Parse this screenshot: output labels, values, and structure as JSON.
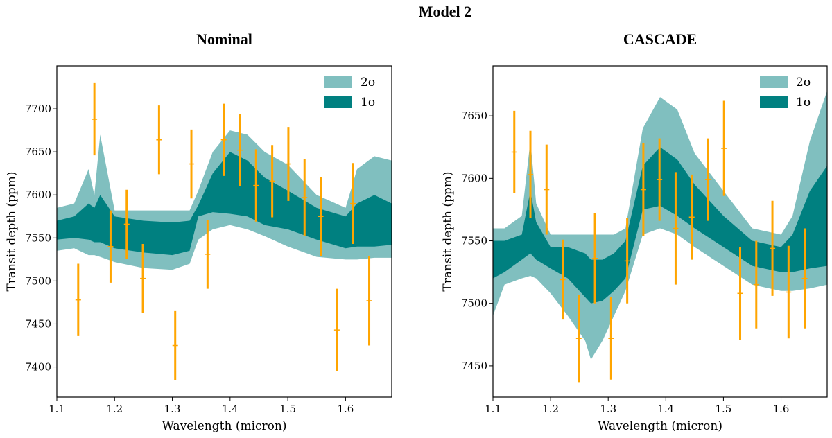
{
  "suptitle": "Model 2",
  "colors": {
    "band_2sigma": "#80bfbf",
    "band_1sigma": "#008080",
    "points": "#ffa500",
    "axes": "#000000"
  },
  "chart_data": [
    {
      "type": "line",
      "title": "Nominal",
      "xlabel": "Wavelength (micron)",
      "ylabel": "Transit depth (ppm)",
      "xlim": [
        1.1,
        1.68
      ],
      "ylim": [
        7365,
        7750
      ],
      "xticks": [
        1.1,
        1.2,
        1.3,
        1.4,
        1.5,
        1.6
      ],
      "xtick_labels": [
        "1.1",
        "1.2",
        "1.3",
        "1.4",
        "1.5",
        "1.6"
      ],
      "yticks": [
        7400,
        7450,
        7500,
        7550,
        7600,
        7650,
        7700
      ],
      "ytick_labels": [
        "7400",
        "7450",
        "7500",
        "7550",
        "7600",
        "7650",
        "7700"
      ],
      "legend": {
        "position": "top-right",
        "entries": [
          "2σ",
          "1σ"
        ]
      },
      "bands": {
        "x": [
          1.1,
          1.13,
          1.155,
          1.165,
          1.175,
          1.2,
          1.25,
          1.3,
          1.33,
          1.345,
          1.37,
          1.4,
          1.43,
          1.46,
          1.5,
          1.55,
          1.6,
          1.62,
          1.65,
          1.68
        ],
        "upper_2s": [
          7585,
          7590,
          7630,
          7600,
          7670,
          7582,
          7582,
          7582,
          7582,
          7605,
          7650,
          7675,
          7670,
          7650,
          7635,
          7600,
          7585,
          7630,
          7645,
          7640
        ],
        "upper_1s": [
          7570,
          7575,
          7590,
          7585,
          7600,
          7575,
          7570,
          7568,
          7570,
          7588,
          7625,
          7650,
          7640,
          7620,
          7605,
          7585,
          7575,
          7590,
          7600,
          7590
        ],
        "lower_1s": [
          7548,
          7550,
          7548,
          7545,
          7545,
          7538,
          7533,
          7530,
          7535,
          7575,
          7580,
          7578,
          7575,
          7565,
          7560,
          7548,
          7538,
          7540,
          7540,
          7542
        ],
        "lower_2s": [
          7535,
          7538,
          7530,
          7530,
          7528,
          7522,
          7515,
          7513,
          7520,
          7548,
          7560,
          7565,
          7560,
          7552,
          7540,
          7528,
          7525,
          7525,
          7527,
          7527
        ]
      },
      "points": {
        "x": [
          1.137,
          1.165,
          1.193,
          1.221,
          1.249,
          1.277,
          1.305,
          1.333,
          1.361,
          1.389,
          1.417,
          1.445,
          1.473,
          1.501,
          1.529,
          1.557,
          1.585,
          1.613,
          1.641
        ],
        "y": [
          7478,
          7688,
          7540,
          7566,
          7503,
          7664,
          7425,
          7636,
          7531,
          7664,
          7652,
          7611,
          7616,
          7636,
          7597,
          7575,
          7443,
          7590,
          7477
        ],
        "err": [
          42,
          42,
          42,
          40,
          40,
          40,
          40,
          40,
          40,
          42,
          42,
          42,
          42,
          43,
          45,
          46,
          48,
          47,
          52
        ]
      }
    },
    {
      "type": "line",
      "title": "CASCADE",
      "xlabel": "Wavelength (micron)",
      "ylabel": "Transit depth (ppm)",
      "xlim": [
        1.1,
        1.68
      ],
      "ylim": [
        7425,
        7690
      ],
      "xticks": [
        1.1,
        1.2,
        1.3,
        1.4,
        1.5,
        1.6
      ],
      "xtick_labels": [
        "1.1",
        "1.2",
        "1.3",
        "1.4",
        "1.5",
        "1.6"
      ],
      "yticks": [
        7450,
        7500,
        7550,
        7600,
        7650
      ],
      "ytick_labels": [
        "7450",
        "7500",
        "7550",
        "7600",
        "7650"
      ],
      "legend": {
        "position": "top-right",
        "entries": [
          "2σ",
          "1σ"
        ]
      },
      "bands": {
        "x": [
          1.1,
          1.12,
          1.15,
          1.165,
          1.175,
          1.2,
          1.23,
          1.26,
          1.27,
          1.29,
          1.31,
          1.33,
          1.36,
          1.39,
          1.42,
          1.45,
          1.5,
          1.55,
          1.6,
          1.62,
          1.65,
          1.68
        ],
        "upper_2s": [
          7560,
          7560,
          7570,
          7630,
          7580,
          7555,
          7555,
          7555,
          7555,
          7555,
          7555,
          7560,
          7640,
          7665,
          7655,
          7620,
          7590,
          7560,
          7555,
          7570,
          7630,
          7670
        ],
        "upper_1s": [
          7550,
          7550,
          7555,
          7590,
          7565,
          7545,
          7545,
          7540,
          7535,
          7535,
          7540,
          7550,
          7610,
          7625,
          7615,
          7595,
          7570,
          7550,
          7545,
          7555,
          7590,
          7610
        ],
        "lower_1s": [
          7520,
          7525,
          7535,
          7540,
          7535,
          7528,
          7520,
          7505,
          7500,
          7502,
          7510,
          7520,
          7575,
          7578,
          7570,
          7560,
          7545,
          7530,
          7525,
          7525,
          7528,
          7530
        ],
        "lower_2s": [
          7490,
          7515,
          7520,
          7522,
          7520,
          7508,
          7490,
          7470,
          7455,
          7470,
          7490,
          7510,
          7555,
          7560,
          7555,
          7545,
          7530,
          7515,
          7510,
          7510,
          7512,
          7515
        ]
      },
      "points": {
        "x": [
          1.137,
          1.165,
          1.193,
          1.221,
          1.249,
          1.277,
          1.305,
          1.333,
          1.361,
          1.389,
          1.417,
          1.445,
          1.473,
          1.501,
          1.529,
          1.557,
          1.585,
          1.613,
          1.641
        ],
        "y": [
          7621,
          7603,
          7591,
          7519,
          7472,
          7536,
          7472,
          7534,
          7591,
          7599,
          7560,
          7569,
          7599,
          7624,
          7508,
          7515,
          7544,
          7509,
          7520
        ],
        "err": [
          33,
          35,
          36,
          32,
          35,
          36,
          33,
          34,
          37,
          33,
          45,
          34,
          33,
          38,
          37,
          35,
          38,
          37,
          40
        ]
      }
    }
  ]
}
